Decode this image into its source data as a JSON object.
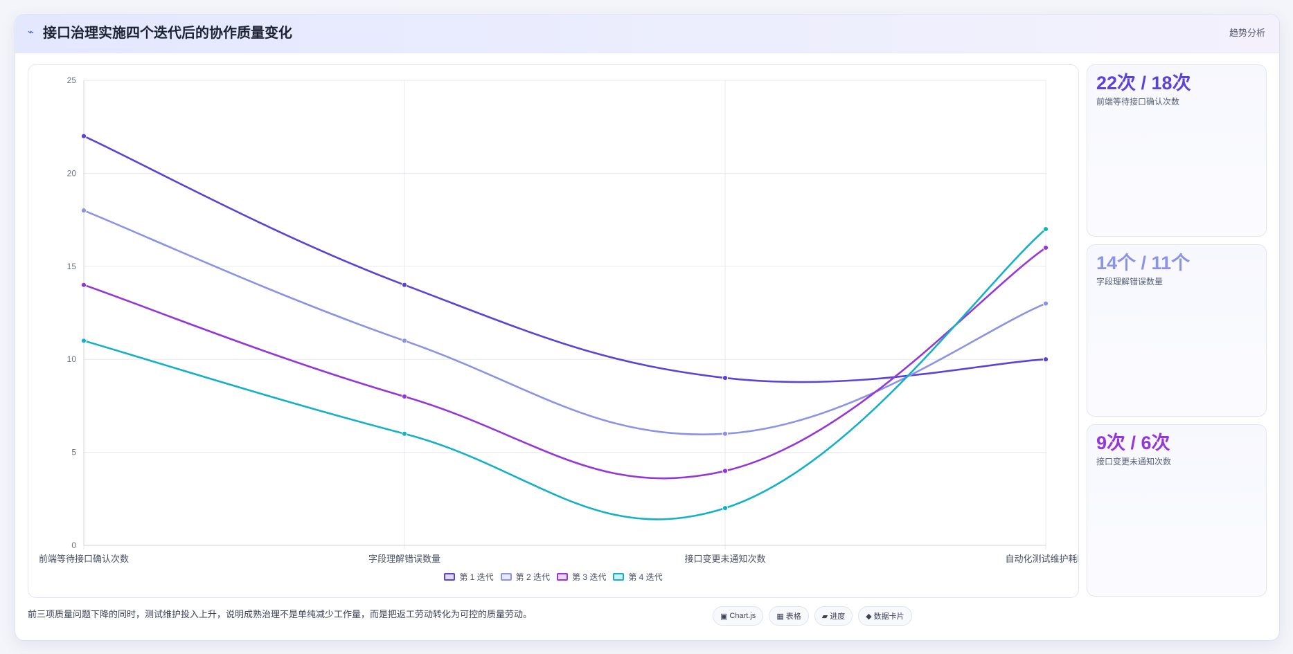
{
  "header": {
    "icon": "trend-icon",
    "title": "接口治理实施四个迭代后的协作质量变化",
    "tag": "趋势分析"
  },
  "chart_data": {
    "type": "line",
    "categories": [
      "前端等待接口确认次数",
      "字段理解错误数量",
      "接口变更未通知次数",
      "自动化测试维护耗时"
    ],
    "series": [
      {
        "name": "第 1 迭代",
        "color": "#5a43d6",
        "values": [
          22,
          14,
          9,
          10
        ]
      },
      {
        "name": "第 2 迭代",
        "color": "#8b93e6",
        "values": [
          18,
          11,
          6,
          13
        ]
      },
      {
        "name": "第 3 迭代",
        "color": "#9536d9",
        "values": [
          14,
          8,
          4,
          16
        ]
      },
      {
        "name": "第 4 迭代",
        "color": "#13b0c6",
        "values": [
          11,
          6,
          2,
          17
        ]
      }
    ],
    "ylim": [
      0,
      25
    ],
    "yticks": [
      0,
      5,
      10,
      15,
      20,
      25
    ],
    "grid": true,
    "legend": "bottom-center",
    "smooth": true
  },
  "stats": [
    {
      "value": "22次 / 18次",
      "label": "前端等待接口确认次数",
      "color": "#5a43d6"
    },
    {
      "value": "14个 / 11个",
      "label": "字段理解错误数量",
      "color": "#8b93e6"
    },
    {
      "value": "9次 / 6次",
      "label": "接口变更未通知次数",
      "color": "#9536d9"
    }
  ],
  "footnote": "前三项质量问题下降的同时，测试维护投入上升，说明成熟治理不是单纯减少工作量，而是把返工劳动转化为可控的质量劳动。",
  "chips": [
    {
      "icon": "▣",
      "label": "Chart.js"
    },
    {
      "icon": "▦",
      "label": "表格"
    },
    {
      "icon": "▰",
      "label": "进度"
    },
    {
      "icon": "◆",
      "label": "数据卡片"
    }
  ]
}
